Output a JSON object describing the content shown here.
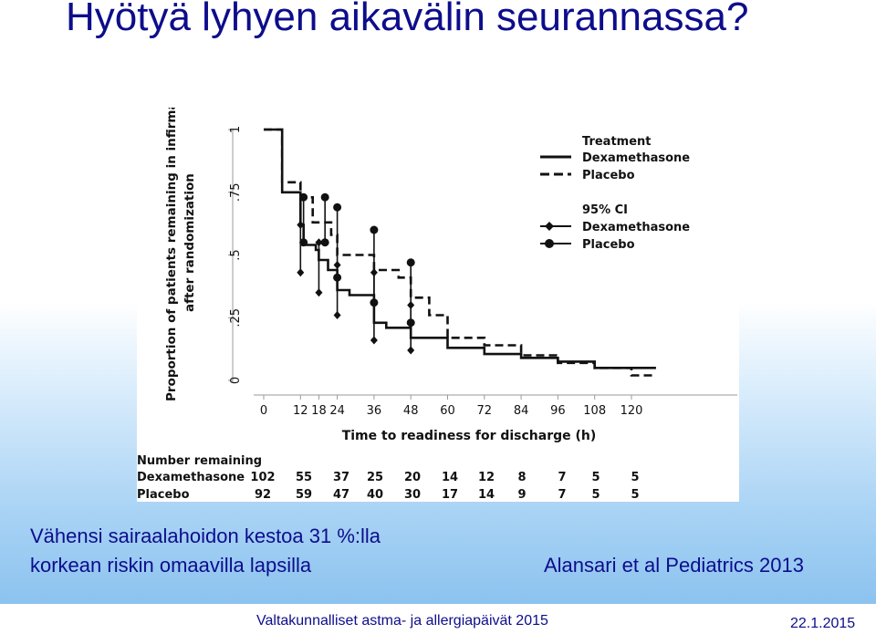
{
  "slide": {
    "title": "Hyötyä lyhyen aikavälin seurannassa?",
    "caption_line1": "Vähensi sairaalahoidon kestoa 31 %:lla",
    "caption_line2": "korkean riskin omaavilla lapsilla",
    "citation": "Alansari et al Pediatrics 2013",
    "footer_event": "Valtakunnalliset astma- ja allergiapäivät 2015",
    "footer_date": "22.1.2015"
  },
  "chart_data": {
    "type": "line",
    "ylabel_line1": "Proportion of patients remaining in infirmary care",
    "ylabel_line2": "after randomization",
    "xlabel": "Time to readiness for discharge (h)",
    "xlim": [
      0,
      128
    ],
    "ylim": [
      0,
      1
    ],
    "x_ticks": [
      0,
      12,
      18,
      24,
      36,
      48,
      60,
      72,
      84,
      96,
      108,
      120
    ],
    "y_ticks": [
      0,
      0.25,
      0.5,
      0.75,
      1
    ],
    "y_tick_labels": [
      "0",
      ".25",
      ".5",
      ".75",
      "1"
    ],
    "legend_title": "Treatment",
    "ci_legend_title": "95% CI",
    "legend_position": "top-right",
    "series": [
      {
        "name": "Dexamethasone",
        "style": "solid",
        "steps": [
          [
            0,
            1.0
          ],
          [
            6,
            1.0
          ],
          [
            6,
            0.75
          ],
          [
            12,
            0.75
          ],
          [
            12,
            0.62
          ],
          [
            13,
            0.62
          ],
          [
            13,
            0.54
          ],
          [
            17,
            0.54
          ],
          [
            17,
            0.52
          ],
          [
            18,
            0.52
          ],
          [
            18,
            0.48
          ],
          [
            21,
            0.48
          ],
          [
            21,
            0.44
          ],
          [
            24,
            0.44
          ],
          [
            24,
            0.36
          ],
          [
            28,
            0.36
          ],
          [
            28,
            0.34
          ],
          [
            36,
            0.34
          ],
          [
            36,
            0.23
          ],
          [
            40,
            0.23
          ],
          [
            40,
            0.21
          ],
          [
            48,
            0.21
          ],
          [
            48,
            0.17
          ],
          [
            60,
            0.17
          ],
          [
            60,
            0.13
          ],
          [
            72,
            0.13
          ],
          [
            72,
            0.105
          ],
          [
            84,
            0.105
          ],
          [
            84,
            0.09
          ],
          [
            96,
            0.09
          ],
          [
            96,
            0.075
          ],
          [
            108,
            0.075
          ],
          [
            108,
            0.05
          ],
          [
            120,
            0.05
          ],
          [
            120,
            0.05
          ],
          [
            128,
            0.05
          ]
        ]
      },
      {
        "name": "Placebo",
        "style": "dashed",
        "steps": [
          [
            0,
            1.0
          ],
          [
            6,
            1.0
          ],
          [
            6,
            0.79
          ],
          [
            12,
            0.79
          ],
          [
            12,
            0.73
          ],
          [
            16,
            0.73
          ],
          [
            16,
            0.63
          ],
          [
            22,
            0.63
          ],
          [
            22,
            0.58
          ],
          [
            24,
            0.58
          ],
          [
            24,
            0.5
          ],
          [
            36,
            0.5
          ],
          [
            36,
            0.44
          ],
          [
            44,
            0.44
          ],
          [
            44,
            0.41
          ],
          [
            48,
            0.41
          ],
          [
            48,
            0.33
          ],
          [
            54,
            0.33
          ],
          [
            54,
            0.26
          ],
          [
            60,
            0.26
          ],
          [
            60,
            0.17
          ],
          [
            72,
            0.17
          ],
          [
            72,
            0.14
          ],
          [
            84,
            0.14
          ],
          [
            84,
            0.1
          ],
          [
            96,
            0.1
          ],
          [
            96,
            0.07
          ],
          [
            108,
            0.07
          ],
          [
            108,
            0.05
          ],
          [
            120,
            0.05
          ],
          [
            120,
            0.02
          ],
          [
            128,
            0.02
          ]
        ]
      }
    ],
    "ci": [
      {
        "name": "Dexamethasone",
        "marker": "diamond",
        "bars": [
          [
            12,
            0.62,
            0.43
          ],
          [
            18,
            0.55,
            0.35
          ],
          [
            24,
            0.46,
            0.26
          ],
          [
            36,
            0.43,
            0.16
          ],
          [
            48,
            0.3,
            0.12
          ]
        ]
      },
      {
        "name": "Placebo",
        "marker": "circle",
        "bars": [
          [
            13,
            0.73,
            0.55
          ],
          [
            20,
            0.73,
            0.55
          ],
          [
            24,
            0.69,
            0.41
          ],
          [
            36,
            0.6,
            0.31
          ],
          [
            48,
            0.47,
            0.23
          ]
        ]
      }
    ],
    "number_remaining": {
      "heading": "Number remaining",
      "rows": [
        {
          "label": "Dexamethasone",
          "values": [
            "102",
            "55",
            "37",
            "25",
            "20",
            "14",
            "12",
            "8",
            "7",
            "5",
            "5"
          ]
        },
        {
          "label": "Placebo",
          "values": [
            "92",
            "59",
            "47",
            "40",
            "30",
            "17",
            "14",
            "9",
            "7",
            "5",
            "5"
          ]
        }
      ]
    }
  }
}
